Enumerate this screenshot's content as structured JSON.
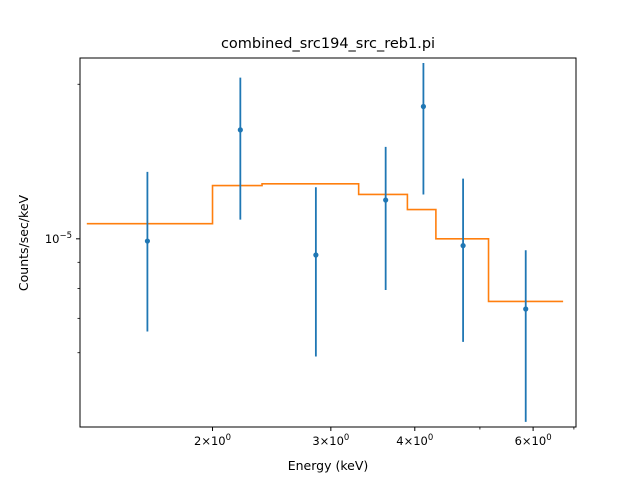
{
  "chart_data": {
    "type": "scatter",
    "title": "combined_src194_src_reb1.pi",
    "xlabel": "Energy (keV)",
    "ylabel": "Counts/sec/keV",
    "x_scale": "log",
    "y_scale": "log",
    "xlim": [
      1.27,
      6.95
    ],
    "ylim": [
      4.3e-06,
      2.25e-05
    ],
    "grid": false,
    "x_major_ticks": [
      {
        "value": 2,
        "mantissa": "2",
        "base": "10",
        "exp": "0"
      },
      {
        "value": 3,
        "mantissa": "3",
        "base": "10",
        "exp": "0"
      },
      {
        "value": 4,
        "mantissa": "4",
        "base": "10",
        "exp": "0"
      },
      {
        "value": 6,
        "mantissa": "6",
        "base": "10",
        "exp": "0"
      }
    ],
    "x_minor_ticks": [
      5
    ],
    "y_major_ticks": [
      {
        "value": 1e-05,
        "base": "10",
        "exp": "−5"
      }
    ],
    "y_minor_ticks": [
      6e-06,
      7e-06,
      8e-06,
      9e-06,
      2e-05
    ],
    "series": [
      {
        "kind": "data",
        "color": "#1f77b4",
        "points": [
          {
            "x": 1.6,
            "y": 9.9e-06,
            "ylo": 6.6e-06,
            "yhi": 1.35e-05
          },
          {
            "x": 2.2,
            "y": 1.63e-05,
            "ylo": 1.09e-05,
            "yhi": 2.06e-05
          },
          {
            "x": 2.85,
            "y": 9.3e-06,
            "ylo": 5.9e-06,
            "yhi": 1.26e-05
          },
          {
            "x": 3.62,
            "y": 1.19e-05,
            "ylo": 7.95e-06,
            "yhi": 1.51e-05
          },
          {
            "x": 4.12,
            "y": 1.81e-05,
            "ylo": 1.22e-05,
            "yhi": 2.2e-05
          },
          {
            "x": 4.72,
            "y": 9.7e-06,
            "ylo": 6.3e-06,
            "yhi": 1.31e-05
          },
          {
            "x": 5.85,
            "y": 7.3e-06,
            "ylo": 4.4e-06,
            "yhi": 9.5e-06
          }
        ]
      },
      {
        "kind": "model",
        "color": "#ff7f0e",
        "steps": [
          {
            "x0": 1.3,
            "x1": 2.0,
            "y": 1.07e-05
          },
          {
            "x0": 2.0,
            "x1": 2.37,
            "y": 1.27e-05
          },
          {
            "x0": 2.37,
            "x1": 3.3,
            "y": 1.28e-05
          },
          {
            "x0": 3.3,
            "x1": 3.9,
            "y": 1.22e-05
          },
          {
            "x0": 3.9,
            "x1": 4.3,
            "y": 1.14e-05
          },
          {
            "x0": 4.3,
            "x1": 5.15,
            "y": 1e-05
          },
          {
            "x0": 5.15,
            "x1": 6.65,
            "y": 7.55e-06
          }
        ]
      }
    ]
  }
}
